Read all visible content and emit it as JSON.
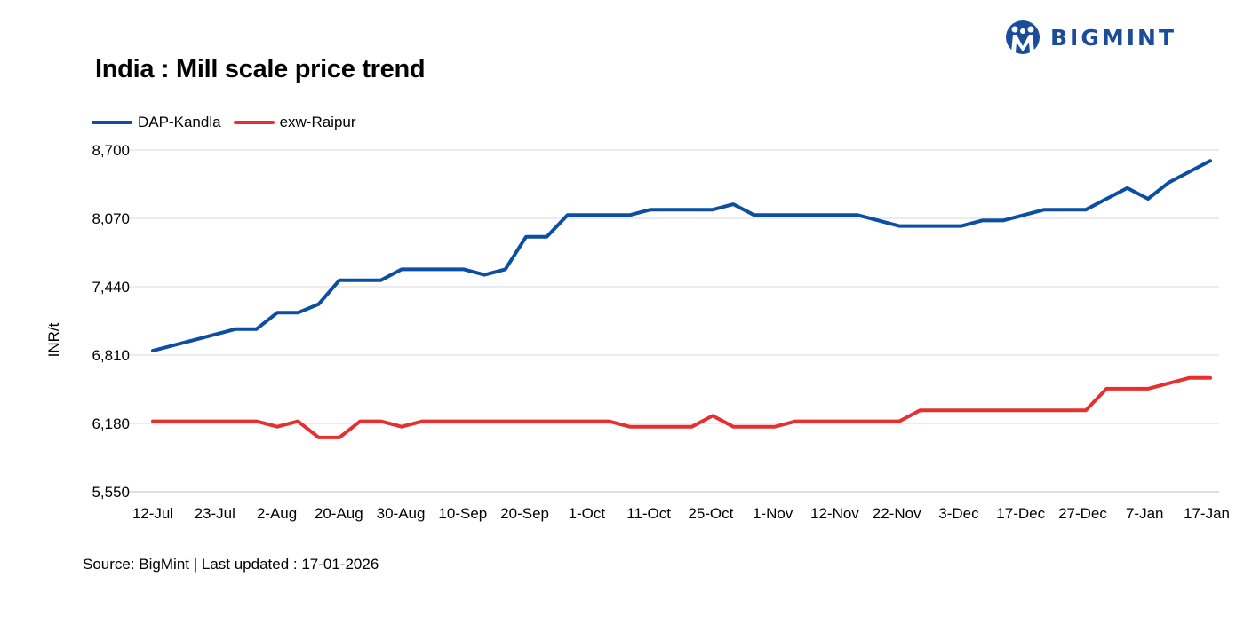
{
  "header": {
    "title": "India : Mill scale price trend",
    "brand": "BIGMINT"
  },
  "footer": {
    "source": "Source: BigMint | Last updated : 17-01-2026"
  },
  "colors": {
    "dap_kandla": "#0b4ea2",
    "exw_raipur": "#e63030",
    "grid": "#d9d9d9",
    "brand": "#1a4c9a"
  },
  "chart_data": {
    "type": "line",
    "title": "India : Mill scale price trend",
    "xlabel": "",
    "ylabel": "INR/t",
    "ylim": [
      5550,
      8700
    ],
    "yticks": [
      5550,
      6180,
      6810,
      7440,
      8070,
      8700
    ],
    "ytick_labels": [
      "5,550",
      "6,180",
      "6,810",
      "7,440",
      "8,070",
      "8,700"
    ],
    "xtick_labels": [
      "12-Jul",
      "23-Jul",
      "2-Aug",
      "20-Aug",
      "30-Aug",
      "10-Sep",
      "20-Sep",
      "1-Oct",
      "11-Oct",
      "25-Oct",
      "1-Nov",
      "12-Nov",
      "22-Nov",
      "3-Dec",
      "17-Dec",
      "27-Dec",
      "7-Jan",
      "17-Jan"
    ],
    "legend_position": "top-left",
    "grid": true,
    "series": [
      {
        "name": "DAP-Kandla",
        "color": "#0b4ea2",
        "values": [
          6850,
          6900,
          6950,
          7000,
          7050,
          7050,
          7200,
          7200,
          7280,
          7500,
          7500,
          7500,
          7600,
          7600,
          7600,
          7600,
          7550,
          7600,
          7900,
          7900,
          8100,
          8100,
          8100,
          8100,
          8150,
          8150,
          8150,
          8150,
          8200,
          8100,
          8100,
          8100,
          8100,
          8100,
          8100,
          8050,
          8000,
          8000,
          8000,
          8000,
          8050,
          8050,
          8100,
          8150,
          8150,
          8150,
          8250,
          8350,
          8250,
          8400,
          8500,
          8600
        ]
      },
      {
        "name": "exw-Raipur",
        "color": "#e63030",
        "values": [
          6200,
          6200,
          6200,
          6200,
          6200,
          6200,
          6150,
          6200,
          6050,
          6050,
          6200,
          6200,
          6150,
          6200,
          6200,
          6200,
          6200,
          6200,
          6200,
          6200,
          6200,
          6200,
          6200,
          6150,
          6150,
          6150,
          6150,
          6250,
          6150,
          6150,
          6150,
          6200,
          6200,
          6200,
          6200,
          6200,
          6200,
          6300,
          6300,
          6300,
          6300,
          6300,
          6300,
          6300,
          6300,
          6300,
          6500,
          6500,
          6500,
          6550,
          6600,
          6600
        ]
      }
    ]
  }
}
